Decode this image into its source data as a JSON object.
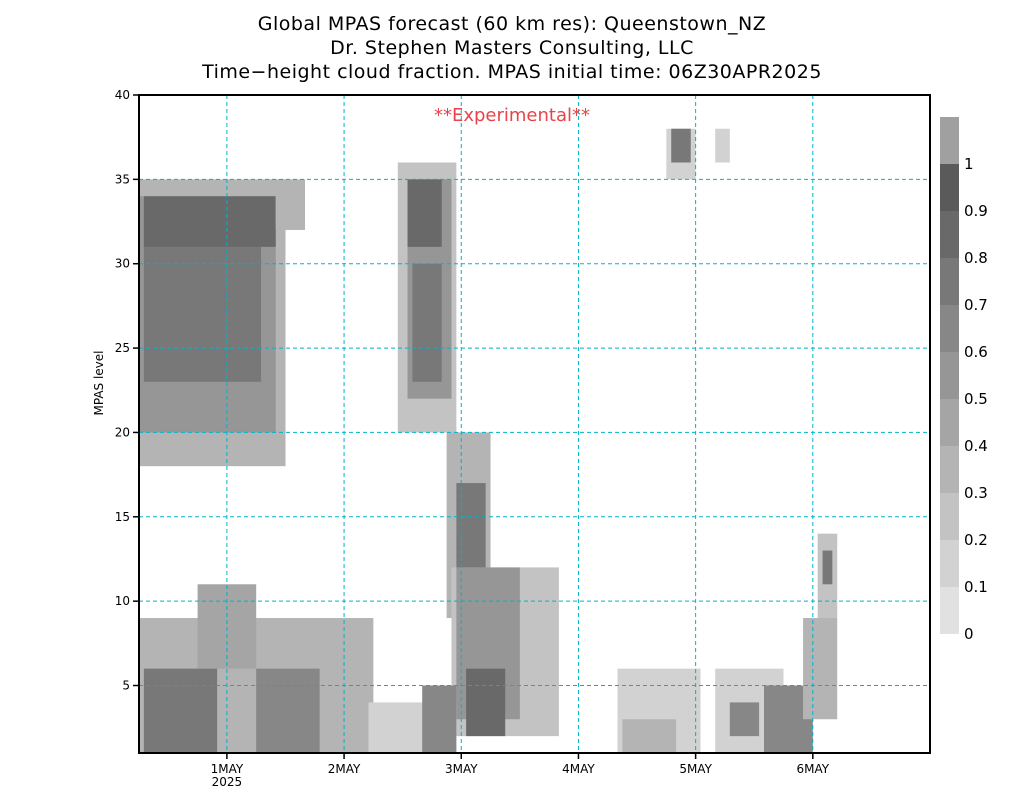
{
  "titles": [
    "Global MPAS forecast (60 km res): Queenstown_NZ",
    "Dr. Stephen Masters Consulting, LLC",
    "Time−height cloud fraction.   MPAS initial time: 06Z30APR2025"
  ],
  "annotation": "**Experimental**",
  "colors": {
    "grid": "#00b4c8",
    "annotation": "#e8434a",
    "levels": [
      "#ffffff",
      "#e1e1e1",
      "#d2d2d2",
      "#c3c3c3",
      "#b4b4b4",
      "#a5a5a5",
      "#969696",
      "#878787",
      "#787878",
      "#696969",
      "#5a5a5a",
      "#a0a0a0"
    ]
  },
  "chart_data": {
    "type": "heatmap",
    "title": "Global MPAS forecast (60 km res): Queenstown_NZ",
    "subtitle": "Time−height cloud fraction.   MPAS initial time: 06Z30APR2025",
    "xlabel": "",
    "ylabel": "MPAS level",
    "x_unit": "hours since 06Z30APR2025",
    "x_range": [
      0,
      162
    ],
    "ylim": [
      1,
      40
    ],
    "y_ticks": [
      5,
      10,
      15,
      20,
      25,
      30,
      35,
      40
    ],
    "x_ticks": [
      {
        "hour": 18,
        "label": "1MAY",
        "sublabel": "2025"
      },
      {
        "hour": 42,
        "label": "2MAY",
        "sublabel": ""
      },
      {
        "hour": 66,
        "label": "3MAY",
        "sublabel": ""
      },
      {
        "hour": 90,
        "label": "4MAY",
        "sublabel": ""
      },
      {
        "hour": 114,
        "label": "5MAY",
        "sublabel": ""
      },
      {
        "hour": 138,
        "label": "6MAY",
        "sublabel": ""
      }
    ],
    "grid": true,
    "colorbar": {
      "levels": [
        0,
        0.1,
        0.2,
        0.3,
        0.4,
        0.5,
        0.6,
        0.7,
        0.8,
        0.9,
        1
      ],
      "labels": [
        "0",
        "0.1",
        "0.2",
        "0.3",
        "0.4",
        "0.5",
        "0.6",
        "0.7",
        "0.8",
        "0.9",
        "1"
      ]
    },
    "cloud_regions": [
      {
        "t0": 0,
        "t1": 30,
        "z0": 18,
        "z1": 35,
        "value": 0.4
      },
      {
        "t0": 0,
        "t1": 28,
        "z0": 20,
        "z1": 34,
        "value": 0.6
      },
      {
        "t0": 1,
        "t1": 25,
        "z0": 23,
        "z1": 33,
        "value": 0.8
      },
      {
        "t0": 1,
        "t1": 28,
        "z0": 31,
        "z1": 34,
        "value": 0.9
      },
      {
        "t0": 28,
        "t1": 34,
        "z0": 32,
        "z1": 35,
        "value": 0.4
      },
      {
        "t0": 53,
        "t1": 65,
        "z0": 20,
        "z1": 36,
        "value": 0.3
      },
      {
        "t0": 55,
        "t1": 64,
        "z0": 22,
        "z1": 35,
        "value": 0.6
      },
      {
        "t0": 55,
        "t1": 62,
        "z0": 31,
        "z1": 35,
        "value": 0.9
      },
      {
        "t0": 56,
        "t1": 62,
        "z0": 23,
        "z1": 30,
        "value": 0.8
      },
      {
        "t0": 63,
        "t1": 72,
        "z0": 9,
        "z1": 20,
        "value": 0.4
      },
      {
        "t0": 65,
        "t1": 71,
        "z0": 10,
        "z1": 17,
        "value": 0.8
      },
      {
        "t0": 64,
        "t1": 86,
        "z0": 2,
        "z1": 12,
        "value": 0.3
      },
      {
        "t0": 65,
        "t1": 78,
        "z0": 3,
        "z1": 12,
        "value": 0.6
      },
      {
        "t0": 67,
        "t1": 75,
        "z0": 2,
        "z1": 6,
        "value": 0.9
      },
      {
        "t0": 0,
        "t1": 48,
        "z0": 1,
        "z1": 9,
        "value": 0.4
      },
      {
        "t0": 12,
        "t1": 24,
        "z0": 6,
        "z1": 11,
        "value": 0.5
      },
      {
        "t0": 1,
        "t1": 16,
        "z0": 1,
        "z1": 6,
        "value": 0.8
      },
      {
        "t0": 24,
        "t1": 37,
        "z0": 1,
        "z1": 6,
        "value": 0.7
      },
      {
        "t0": 47,
        "t1": 65,
        "z0": 1,
        "z1": 4,
        "value": 0.2
      },
      {
        "t0": 58,
        "t1": 65,
        "z0": 1,
        "z1": 5,
        "value": 0.7
      },
      {
        "t0": 98,
        "t1": 115,
        "z0": 1,
        "z1": 6,
        "value": 0.2
      },
      {
        "t0": 99,
        "t1": 110,
        "z0": 1,
        "z1": 3,
        "value": 0.4
      },
      {
        "t0": 118,
        "t1": 132,
        "z0": 1,
        "z1": 6,
        "value": 0.2
      },
      {
        "t0": 121,
        "t1": 127,
        "z0": 2,
        "z1": 4,
        "value": 0.7
      },
      {
        "t0": 128,
        "t1": 138,
        "z0": 1,
        "z1": 5,
        "value": 0.7
      },
      {
        "t0": 136,
        "t1": 143,
        "z0": 3,
        "z1": 9,
        "value": 0.4
      },
      {
        "t0": 139,
        "t1": 143,
        "z0": 9,
        "z1": 14,
        "value": 0.3
      },
      {
        "t0": 140,
        "t1": 142,
        "z0": 11,
        "z1": 13,
        "value": 0.8
      },
      {
        "t0": 108,
        "t1": 114,
        "z0": 35,
        "z1": 38,
        "value": 0.2
      },
      {
        "t0": 109,
        "t1": 113,
        "z0": 36,
        "z1": 38,
        "value": 0.8
      },
      {
        "t0": 118,
        "t1": 121,
        "z0": 36,
        "z1": 38,
        "value": 0.2
      }
    ]
  }
}
